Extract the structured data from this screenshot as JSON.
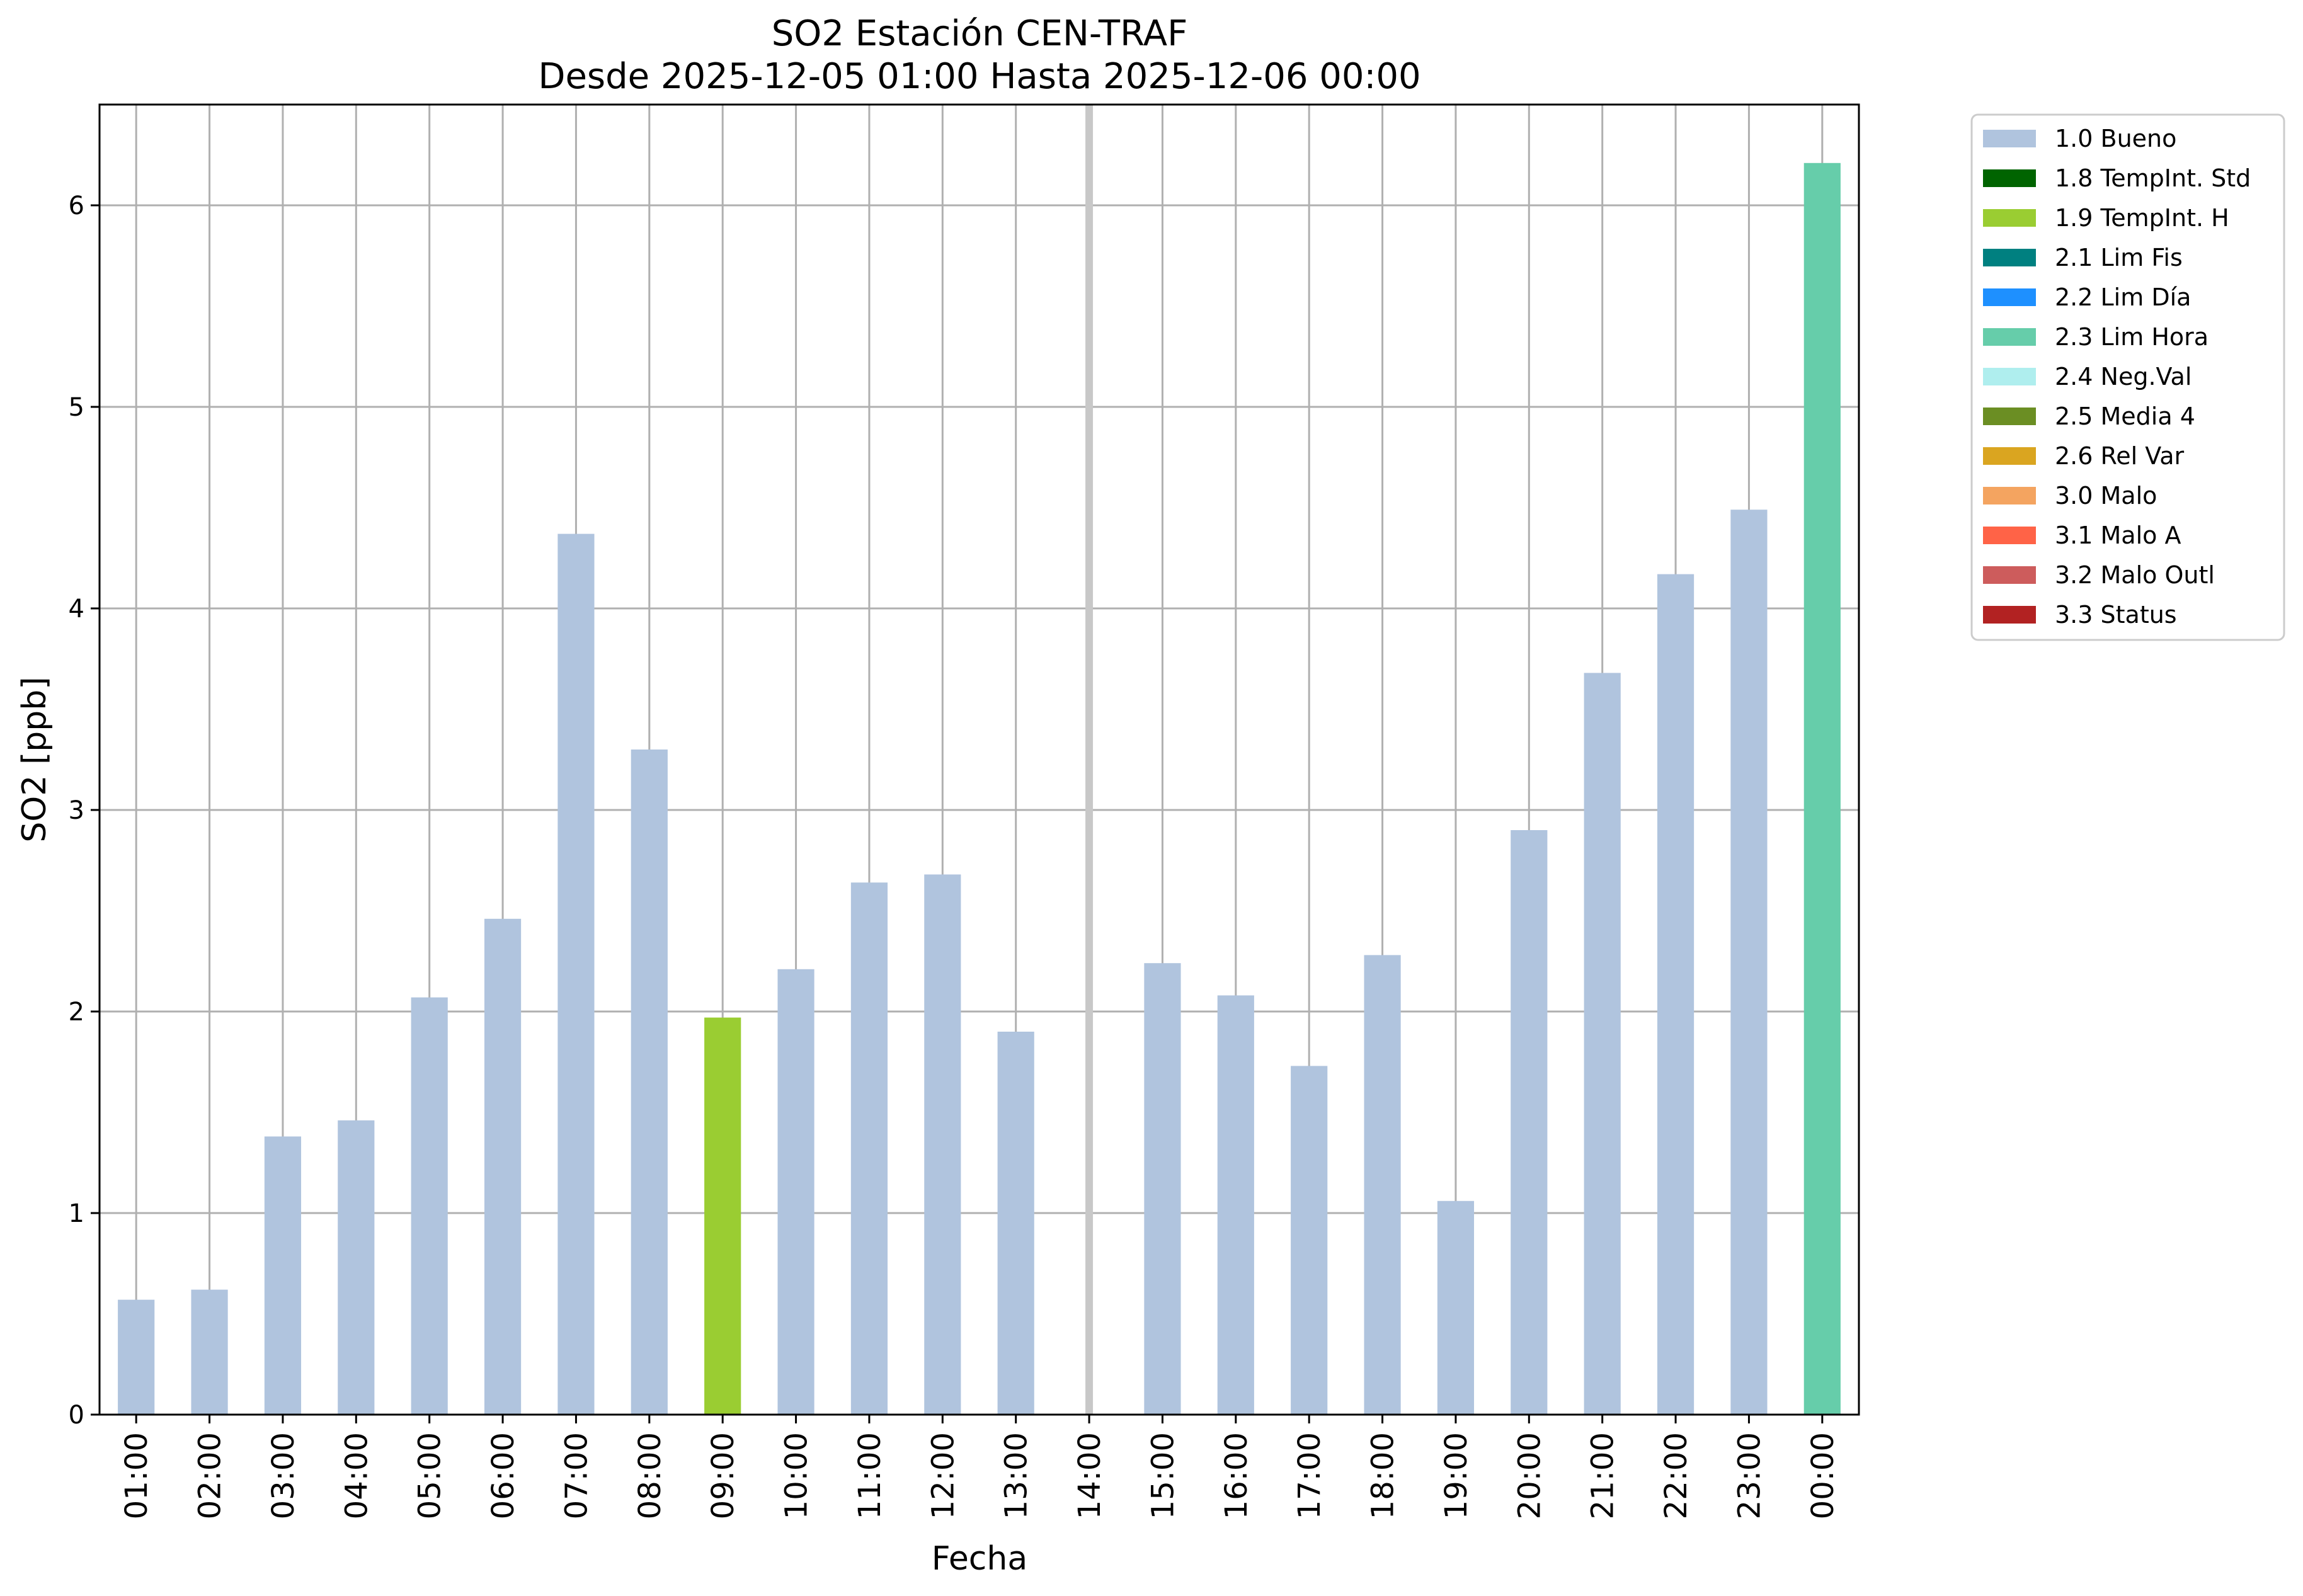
{
  "chart_data": {
    "type": "bar",
    "title_line1": "SO2 Estación CEN-TRAF",
    "title_line2": "Desde 2025-12-05 01:00 Hasta 2025-12-06 00:00",
    "xlabel": "Fecha",
    "ylabel": "SO2 [ppb]",
    "ylim": [
      0,
      6.5
    ],
    "yticks": [
      "0",
      "1",
      "2",
      "3",
      "4",
      "5",
      "6"
    ],
    "grid": true,
    "legend_position": "outside-right-top",
    "categories": [
      "01:00",
      "02:00",
      "03:00",
      "04:00",
      "05:00",
      "06:00",
      "07:00",
      "08:00",
      "09:00",
      "10:00",
      "11:00",
      "12:00",
      "13:00",
      "14:00",
      "15:00",
      "16:00",
      "17:00",
      "18:00",
      "19:00",
      "20:00",
      "21:00",
      "22:00",
      "23:00",
      "00:00"
    ],
    "values": [
      0.57,
      0.62,
      1.38,
      1.46,
      2.07,
      2.46,
      4.37,
      3.3,
      1.97,
      2.21,
      2.64,
      2.68,
      1.9,
      null,
      2.24,
      2.08,
      1.73,
      2.28,
      1.06,
      2.9,
      3.68,
      4.17,
      4.49,
      6.21
    ],
    "flags": [
      "1.0 Bueno",
      "1.0 Bueno",
      "1.0 Bueno",
      "1.0 Bueno",
      "1.0 Bueno",
      "1.0 Bueno",
      "1.0 Bueno",
      "1.0 Bueno",
      "1.9 TempInt. H",
      "1.0 Bueno",
      "1.0 Bueno",
      "1.0 Bueno",
      "1.0 Bueno",
      null,
      "1.0 Bueno",
      "1.0 Bueno",
      "1.0 Bueno",
      "1.0 Bueno",
      "1.0 Bueno",
      "1.0 Bueno",
      "1.0 Bueno",
      "1.0 Bueno",
      "1.0 Bueno",
      "2.3 Lim Hora"
    ],
    "missing_marker_category": "14:00",
    "missing_marker_color": "#c8c8c8",
    "legend": [
      {
        "label": "1.0 Bueno",
        "color": "#b0c4de"
      },
      {
        "label": "1.8 TempInt. Std",
        "color": "#006400"
      },
      {
        "label": "1.9 TempInt. H",
        "color": "#9acd32"
      },
      {
        "label": "2.1 Lim Fis",
        "color": "#008080"
      },
      {
        "label": "2.2 Lim Día",
        "color": "#1e90ff"
      },
      {
        "label": "2.3 Lim Hora",
        "color": "#66cdaa"
      },
      {
        "label": "2.4 Neg.Val",
        "color": "#afeeee"
      },
      {
        "label": "2.5 Media 4",
        "color": "#6b8e23"
      },
      {
        "label": "2.6 Rel Var",
        "color": "#daa520"
      },
      {
        "label": "3.0 Malo",
        "color": "#f4a460"
      },
      {
        "label": "3.1 Malo A",
        "color": "#ff6347"
      },
      {
        "label": "3.2 Malo Outl",
        "color": "#cd5c5c"
      },
      {
        "label": "3.3 Status",
        "color": "#b22222"
      }
    ]
  }
}
